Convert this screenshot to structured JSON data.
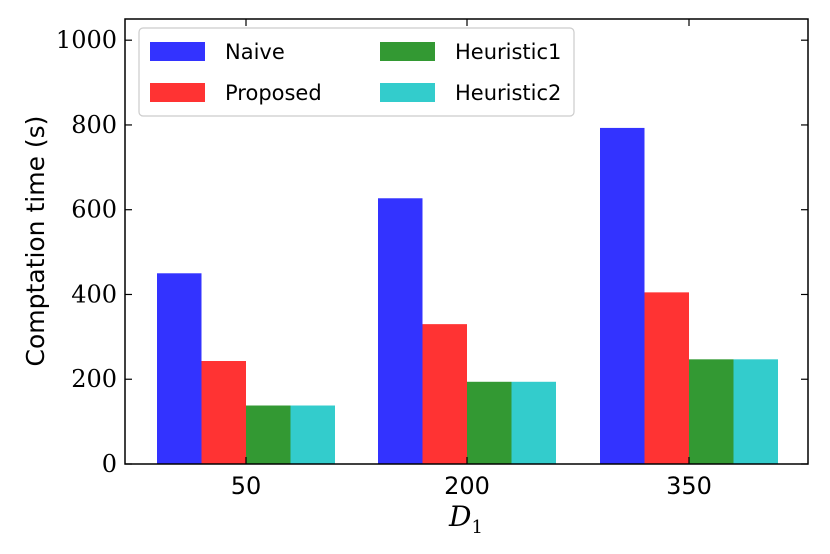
{
  "chart_data": {
    "type": "bar",
    "title": "",
    "xlabel": "D",
    "xlabel_subscript": "1",
    "ylabel": "Comptation time (s)",
    "categories": [
      "50",
      "200",
      "350"
    ],
    "ylim": [
      0,
      1050
    ],
    "yticks": [
      0,
      200,
      400,
      600,
      800,
      1000
    ],
    "ytick_labels": [
      "0",
      "200",
      "400",
      "600",
      "800",
      "1000"
    ],
    "grid": false,
    "legend_position": "top-left",
    "series": [
      {
        "name": "Naive",
        "color": "#3333ff",
        "values": [
          450,
          627,
          793
        ]
      },
      {
        "name": "Proposed",
        "color": "#ff3333",
        "values": [
          243,
          330,
          405
        ]
      },
      {
        "name": "Heuristic1",
        "color": "#339933",
        "values": [
          138,
          194,
          247
        ]
      },
      {
        "name": "Heuristic2",
        "color": "#33cccc",
        "values": [
          138,
          194,
          247
        ]
      }
    ]
  }
}
